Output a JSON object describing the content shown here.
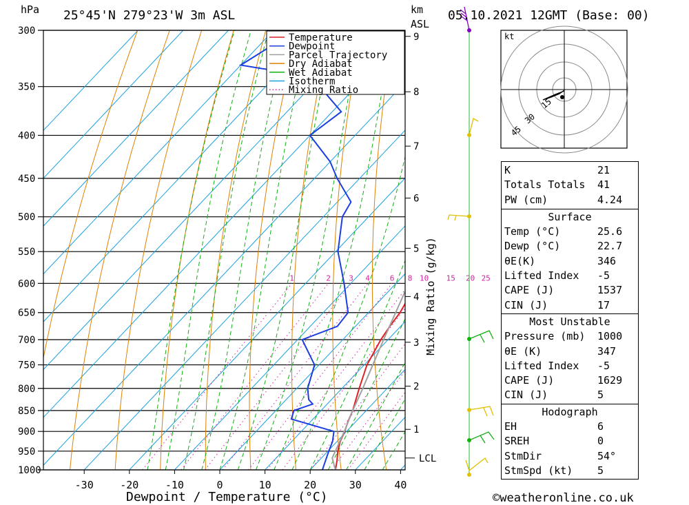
{
  "header": {
    "location": "25°45'N 279°23'W 3m ASL",
    "datetime": "05.10.2021 12GMT (Base: 00)",
    "y_unit_left": "hPa",
    "y_unit_right_top": "km",
    "y_unit_right_bottom": "ASL",
    "copyright": "©weatheronline.co.uk"
  },
  "chart_data": {
    "type": "line",
    "title": "25°45'N 279°23'W 3m ASL",
    "xlabel": "Dewpoint / Temperature (°C)",
    "ylabel": "hPa",
    "ylabel_right": "Mixing Ratio (g/kg)",
    "x_ticks": [
      -30,
      -20,
      -10,
      0,
      10,
      20,
      30,
      40
    ],
    "x_range": [
      -40,
      40
    ],
    "y_log_scale": true,
    "y_range": [
      1000,
      300
    ],
    "pressure_ticks": [
      300,
      350,
      400,
      450,
      500,
      550,
      600,
      650,
      700,
      750,
      800,
      850,
      900,
      950,
      1000
    ],
    "km_ticks": [
      1,
      2,
      3,
      4,
      5,
      6,
      7,
      8,
      9
    ],
    "km_pressures": [
      895,
      795,
      705,
      622,
      545,
      475,
      412,
      355,
      305
    ],
    "lcl_label": "LCL",
    "lcl_pressure": 968,
    "mixing_ratio_labels": [
      "1",
      "2",
      "3",
      "4",
      "6",
      "8",
      "10",
      "15",
      "20",
      "25"
    ],
    "mixing_ratio_values": [
      1,
      2,
      3,
      4,
      6,
      8,
      10,
      15,
      20,
      25
    ],
    "legend": [
      "Temperature",
      "Dewpoint",
      "Parcel Trajectory",
      "Dry Adiabat",
      "Wet Adiabat",
      "Isotherm",
      "Mixing Ratio"
    ],
    "legend_placement": "top",
    "colors": {
      "temperature": "#e02020",
      "dewpoint": "#1a3ee0",
      "parcel": "#a0a0a0",
      "dry_adiabat": "#e08000",
      "wet_adiabat": "#10b010",
      "isotherm": "#18a0e0",
      "mixing_ratio": "#d020a0"
    },
    "series": [
      {
        "name": "Temperature",
        "points": [
          [
            1000,
            25.6
          ],
          [
            975,
            24.0
          ],
          [
            950,
            22.2
          ],
          [
            925,
            20.7
          ],
          [
            900,
            19.6
          ],
          [
            875,
            18.2
          ],
          [
            850,
            17.0
          ],
          [
            800,
            13.8
          ],
          [
            750,
            10.6
          ],
          [
            700,
            8.4
          ],
          [
            675,
            7.6
          ],
          [
            650,
            7.0
          ],
          [
            600,
            4.6
          ],
          [
            575,
            2.0
          ],
          [
            550,
            -0.8
          ],
          [
            500,
            -6.0
          ],
          [
            450,
            -11.8
          ],
          [
            400,
            -18.8
          ],
          [
            375,
            -23.0
          ],
          [
            350,
            -28.2
          ],
          [
            325,
            -32.4
          ],
          [
            300,
            -37.0
          ]
        ]
      },
      {
        "name": "Dewpoint",
        "points": [
          [
            1000,
            22.7
          ],
          [
            950,
            20.2
          ],
          [
            925,
            19.0
          ],
          [
            900,
            17.2
          ],
          [
            870,
            5.2
          ],
          [
            850,
            4.0
          ],
          [
            835,
            6.8
          ],
          [
            825,
            5.0
          ],
          [
            800,
            2.4
          ],
          [
            750,
            -1.0
          ],
          [
            700,
            -9.0
          ],
          [
            675,
            -4.0
          ],
          [
            650,
            -4.5
          ],
          [
            600,
            -11.5
          ],
          [
            550,
            -19.5
          ],
          [
            500,
            -25.8
          ],
          [
            480,
            -27.0
          ],
          [
            450,
            -35.0
          ],
          [
            430,
            -40.0
          ],
          [
            400,
            -50.0
          ],
          [
            375,
            -48.0
          ],
          [
            350,
            -58.0
          ],
          [
            340,
            -63.0
          ],
          [
            330,
            -80.0
          ],
          [
            300,
            -75.0
          ]
        ]
      },
      {
        "name": "Parcel Trajectory",
        "points": [
          [
            1000,
            25.6
          ],
          [
            968,
            22.4
          ],
          [
            900,
            19.5
          ],
          [
            850,
            17.0
          ],
          [
            800,
            14.6
          ],
          [
            700,
            9.0
          ],
          [
            600,
            2.8
          ],
          [
            500,
            -5.0
          ],
          [
            400,
            -15.5
          ],
          [
            300,
            -32.0
          ]
        ]
      }
    ]
  },
  "hodograph": {
    "unit": "kt",
    "ring_labels": [
      "15",
      "30",
      "45"
    ]
  },
  "indices": {
    "k_label": "K",
    "k_value": "21",
    "tt_label": "Totals Totals",
    "tt_value": "41",
    "pw_label": "PW (cm)",
    "pw_value": "4.24",
    "surface": {
      "title": "Surface",
      "temp_label": "Temp (°C)",
      "temp_value": "25.6",
      "dewp_label": "Dewp (°C)",
      "dewp_value": "22.7",
      "theta_label": "θE(K)",
      "theta_value": "346",
      "li_label": "Lifted Index",
      "li_value": "-5",
      "cape_label": "CAPE (J)",
      "cape_value": "1537",
      "cin_label": "CIN (J)",
      "cin_value": "17"
    },
    "most_unstable": {
      "title": "Most Unstable",
      "pressure_label": "Pressure (mb)",
      "pressure_value": "1000",
      "theta_label": "θE (K)",
      "theta_value": "347",
      "li_label": "Lifted Index",
      "li_value": "-5",
      "cape_label": "CAPE (J)",
      "cape_value": "1629",
      "cin_label": "CIN (J)",
      "cin_value": "5"
    },
    "hodograph": {
      "title": "Hodograph",
      "eh_label": "EH",
      "eh_value": "6",
      "sreh_label": "SREH",
      "sreh_value": "0",
      "stmdir_label": "StmDir",
      "stmdir_value": "54°",
      "stmspd_label": "StmSpd (kt)",
      "stmspd_value": "5"
    }
  }
}
